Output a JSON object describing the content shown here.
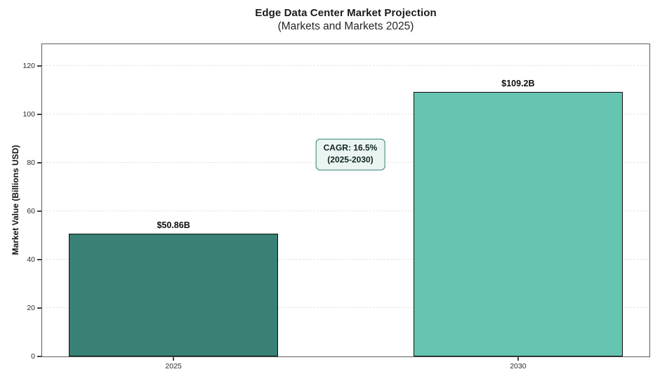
{
  "title": "Edge Data Center Market Projection",
  "subtitle": "(Markets and Markets 2025)",
  "chart_data": {
    "type": "bar",
    "title": "Edge Data Center Market Projection",
    "subtitle": "(Markets and Markets 2025)",
    "source": "Markets and Markets 2025",
    "categories": [
      "2025",
      "2030"
    ],
    "values": [
      50.86,
      109.2
    ],
    "bar_labels": [
      "$50.86B",
      "$109.2B"
    ],
    "bar_colors": [
      "#388174",
      "#66c5b0"
    ],
    "bar_edge_color": "#0d0d0d",
    "xlabel": "",
    "ylabel": "Market Value (Billions USD)",
    "ylim": [
      0,
      129
    ],
    "yticks": [
      0,
      20,
      40,
      60,
      80,
      100,
      120
    ],
    "grid": "horizontal-dashed",
    "legend": "none",
    "annotation": {
      "line1": "CAGR: 16.5%",
      "line2": "(2025-2030)",
      "border_color": "#2e8276",
      "bg_color": "#eaf4f1",
      "anchor_value": 83.4,
      "anchor_x_fraction": 0.5075
    }
  }
}
